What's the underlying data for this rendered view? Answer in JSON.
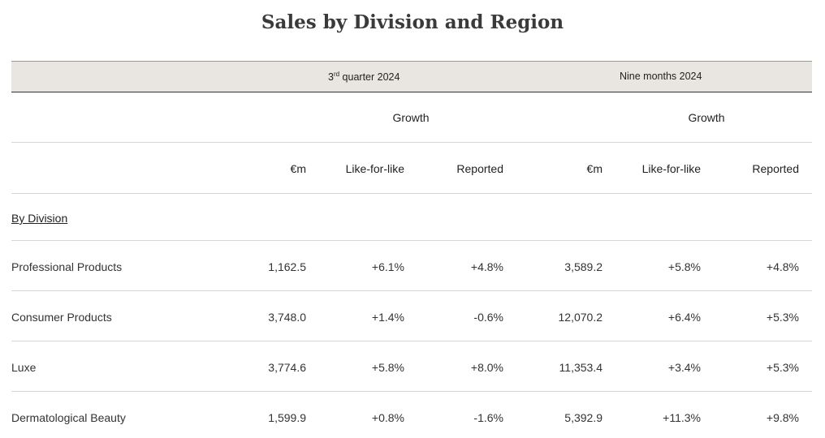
{
  "title": "Sales by Division and Region",
  "header": {
    "q3": {
      "num": "3",
      "sup": "rd",
      "rest": " quarter 2024"
    },
    "nine_months": "Nine months 2024",
    "growth": "Growth",
    "columns": [
      "€m",
      "Like-for-like",
      "Reported",
      "€m",
      "Like-for-like",
      "Reported"
    ]
  },
  "section_label": "By Division",
  "rows": [
    {
      "label": "Professional Products",
      "values": [
        "1,162.5",
        "+6.1%",
        "+4.8%",
        "3,589.2",
        "+5.8%",
        "+4.8%"
      ]
    },
    {
      "label": "Consumer Products",
      "values": [
        "3,748.0",
        "+1.4%",
        "-0.6%",
        "12,070.2",
        "+6.4%",
        "+5.3%"
      ]
    },
    {
      "label": "Luxe",
      "values": [
        "3,774.6",
        "+5.8%",
        "+8.0%",
        "11,353.4",
        "+3.4%",
        "+5.3%"
      ]
    },
    {
      "label": "Dermatological Beauty",
      "values": [
        "1,599.9",
        "+0.8%",
        "-1.6%",
        "5,392.9",
        "+11.3%",
        "+9.8%"
      ]
    }
  ]
}
